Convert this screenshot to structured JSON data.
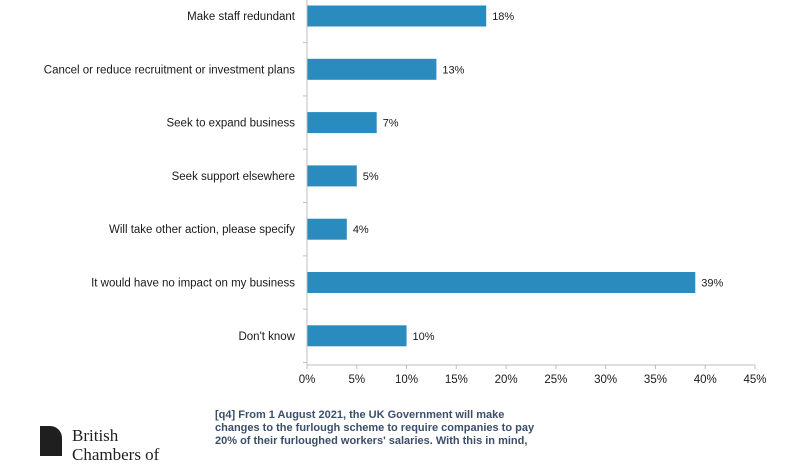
{
  "chart_data": {
    "type": "bar",
    "orientation": "horizontal",
    "categories": [
      "Make staff redundant",
      "Cancel or reduce recruitment or investment plans",
      "Seek to expand business",
      "Seek support elsewhere",
      "Will take other action, please specify",
      "It would have no impact on my business",
      "Don't know"
    ],
    "values": [
      18,
      13,
      7,
      5,
      4,
      39,
      10
    ],
    "value_labels": [
      "18%",
      "13%",
      "7%",
      "5%",
      "4%",
      "39%",
      "10%"
    ],
    "xlim": [
      0,
      45
    ],
    "x_ticks": [
      "0%",
      "5%",
      "10%",
      "15%",
      "20%",
      "25%",
      "30%",
      "35%",
      "40%",
      "45%"
    ],
    "bar_color": "#2a8bbf",
    "grid": false,
    "title": "",
    "xlabel": "",
    "ylabel": ""
  },
  "footer": {
    "logo_text_line1": "British",
    "logo_text_line2": "Chambers of",
    "note_line1": "[q4] From 1 August 2021, the UK Government will make",
    "note_line2": "changes to the furlough scheme to require companies to pay",
    "note_line3": "20% of their furloughed workers' salaries. With this in mind,"
  }
}
